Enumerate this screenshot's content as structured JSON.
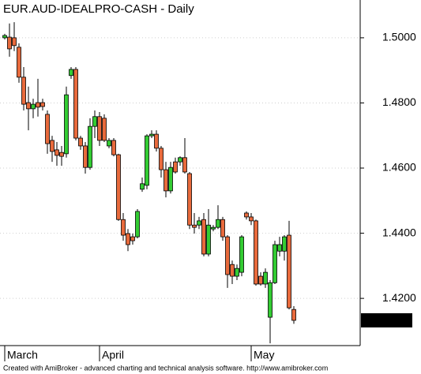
{
  "chart_data": {
    "type": "candlestick",
    "title": "EUR.AUD-IDEALPRO-CASH - Daily",
    "footer": "Created with AmiBroker - advanced charting and technical analysis software. http://www.amibroker.com",
    "categories": [
      "March",
      null,
      null,
      null,
      null,
      null,
      null,
      null,
      null,
      null,
      null,
      null,
      null,
      null,
      null,
      null,
      null,
      null,
      null,
      null,
      "April",
      null,
      null,
      null,
      null,
      null,
      null,
      null,
      null,
      null,
      null,
      null,
      null,
      null,
      null,
      null,
      null,
      null,
      null,
      null,
      null,
      null,
      null,
      null,
      null,
      null,
      null,
      null,
      null,
      null,
      null,
      null,
      "May",
      null,
      null,
      null,
      null,
      null,
      null,
      null,
      null,
      null
    ],
    "open": [
      1.5,
      1.5002,
      1.5,
      1.4971,
      1.4879,
      1.4801,
      1.4782,
      1.4801,
      1.4801,
      1.4765,
      1.4685,
      1.4656,
      1.4648,
      1.4644,
      1.4884,
      1.4903,
      1.4692,
      1.4668,
      1.4602,
      1.4728,
      1.4758,
      1.4753,
      1.4668,
      1.4685,
      1.4641,
      1.4442,
      1.4399,
      1.4389,
      1.4389,
      1.4535,
      1.4547,
      1.4699,
      1.4704,
      1.4661,
      1.4595,
      1.453,
      1.4619,
      1.4619,
      1.4632,
      1.4583,
      1.4425,
      1.4425,
      1.4442,
      1.4336,
      1.4413,
      1.4418,
      1.4442,
      1.4389,
      1.4304,
      1.4268,
      1.428,
      1.4462,
      1.445,
      1.4438,
      1.4268,
      1.4244,
      1.4142,
      1.4248,
      1.4345,
      1.4345,
      1.4394,
      1.4166
    ],
    "high": [
      1.5012,
      1.5044,
      1.5048,
      1.4983,
      1.491,
      1.485,
      1.4813,
      1.4874,
      1.4813,
      1.4777,
      1.4699,
      1.468,
      1.4668,
      1.485,
      1.491,
      1.491,
      1.4699,
      1.468,
      1.4753,
      1.4777,
      1.4772,
      1.4765,
      1.4692,
      1.4692,
      1.4644,
      1.4462,
      1.4413,
      1.4399,
      1.4474,
      1.4571,
      1.4704,
      1.4716,
      1.4716,
      1.4668,
      1.4619,
      1.4619,
      1.4632,
      1.4636,
      1.4692,
      1.4588,
      1.4462,
      1.445,
      1.4462,
      1.4474,
      1.4425,
      1.4486,
      1.445,
      1.4394,
      1.4316,
      1.4304,
      1.4394,
      1.4467,
      1.4462,
      1.4442,
      1.428,
      1.4292,
      1.4256,
      1.4377,
      1.4389,
      1.4394,
      1.4438,
      1.4176
    ],
    "low": [
      1.4995,
      1.4942,
      1.4959,
      1.4862,
      1.4777,
      1.4716,
      1.4753,
      1.4758,
      1.4777,
      1.4644,
      1.4619,
      1.4607,
      1.4607,
      1.4632,
      1.4874,
      1.4685,
      1.4656,
      1.4583,
      1.4595,
      1.4692,
      1.4668,
      1.468,
      1.4661,
      1.4636,
      1.4438,
      1.4377,
      1.4345,
      1.4365,
      1.4384,
      1.4527,
      1.4535,
      1.4692,
      1.4651,
      1.4571,
      1.451,
      1.4522,
      1.4583,
      1.4607,
      1.4583,
      1.4413,
      1.4399,
      1.4413,
      1.4329,
      1.4329,
      1.4406,
      1.4413,
      1.4377,
      1.4232,
      1.4244,
      1.4256,
      1.4268,
      1.4442,
      1.4425,
      1.4239,
      1.4239,
      1.4232,
      1.4062,
      1.4244,
      1.4329,
      1.4316,
      1.4166,
      1.4122
    ],
    "close": [
      1.5007,
      1.4966,
      1.4976,
      1.4879,
      1.4796,
      1.4782,
      1.4796,
      1.4787,
      1.4789,
      1.4675,
      1.4651,
      1.4639,
      1.4636,
      1.4825,
      1.4903,
      1.4692,
      1.4668,
      1.4602,
      1.4728,
      1.4758,
      1.4685,
      1.4685,
      1.4685,
      1.4641,
      1.4442,
      1.4394,
      1.4365,
      1.4377,
      1.4467,
      1.4552,
      1.4699,
      1.4704,
      1.4661,
      1.4595,
      1.453,
      1.4602,
      1.4588,
      1.4632,
      1.4588,
      1.4425,
      1.4418,
      1.4438,
      1.4336,
      1.4425,
      1.4418,
      1.4442,
      1.4389,
      1.4273,
      1.4268,
      1.4292,
      1.4389,
      1.445,
      1.4438,
      1.4244,
      1.4244,
      1.428,
      1.4248,
      1.4365,
      1.4365,
      1.4389,
      1.4171,
      1.41325
    ],
    "up_color": "#33cc33",
    "down_color": "#e86a3c",
    "ylim": [
      1.4055,
      1.5116
    ],
    "yticks": [
      {
        "value": 1.42,
        "label": "1.4200"
      },
      {
        "value": 1.44,
        "label": "1.4400"
      },
      {
        "value": 1.46,
        "label": "1.4600"
      },
      {
        "value": 1.48,
        "label": "1.4800"
      },
      {
        "value": 1.5,
        "label": "1.5000"
      }
    ],
    "grid": true
  }
}
